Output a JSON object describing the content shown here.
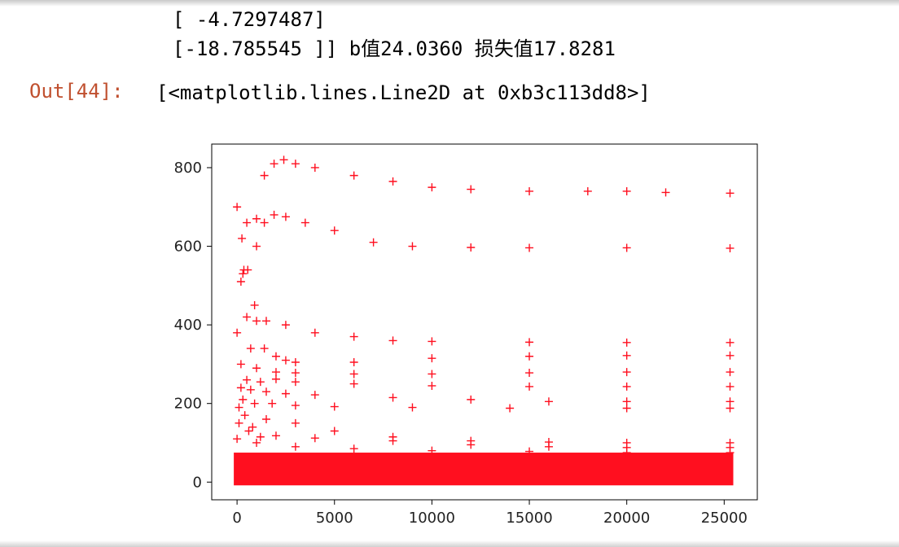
{
  "stdout": {
    "lines": [
      "[ -4.7297487]",
      "[-18.785545 ]] b值24.0360 损失值17.8281"
    ]
  },
  "output": {
    "prompt": "Out[44]:",
    "text": "[<matplotlib.lines.Line2D at 0xb3c113dd8>]"
  },
  "colors": {
    "marker": "#ff0f1f",
    "prompt": "#c0502f"
  },
  "chart_data": {
    "type": "scatter",
    "marker": "+",
    "xlim": [
      -1300,
      26700
    ],
    "ylim": [
      -45,
      860
    ],
    "x_ticks": [
      0,
      5000,
      10000,
      15000,
      20000,
      25000
    ],
    "x_tick_labels": [
      "0",
      "5000",
      "10000",
      "15000",
      "20000",
      "25000"
    ],
    "y_ticks": [
      0,
      200,
      400,
      600,
      800
    ],
    "y_tick_labels": [
      "0",
      "200",
      "400",
      "600",
      "800"
    ],
    "grid": false,
    "series": [
      {
        "points": [
          [
            0,
            700
          ],
          [
            250,
            620
          ],
          [
            1400,
            780
          ],
          [
            1900,
            810
          ],
          [
            2400,
            820
          ],
          [
            3000,
            810
          ],
          [
            4000,
            800
          ],
          [
            6000,
            780
          ],
          [
            8000,
            765
          ],
          [
            10000,
            750
          ],
          [
            12000,
            745
          ],
          [
            15000,
            740
          ],
          [
            18000,
            740
          ],
          [
            20000,
            740
          ],
          [
            22000,
            737
          ],
          [
            25300,
            735
          ]
        ]
      },
      {
        "points": [
          [
            500,
            660
          ],
          [
            1000,
            670
          ],
          [
            1400,
            660
          ],
          [
            1900,
            680
          ],
          [
            2500,
            675
          ],
          [
            3500,
            660
          ],
          [
            5000,
            640
          ],
          [
            7000,
            610
          ],
          [
            9000,
            600
          ],
          [
            12000,
            597
          ],
          [
            15000,
            596
          ],
          [
            20000,
            596
          ],
          [
            25300,
            595
          ]
        ]
      },
      {
        "points": [
          [
            200,
            510
          ],
          [
            350,
            540
          ],
          [
            550,
            540
          ],
          [
            1000,
            600
          ],
          [
            300,
            530
          ]
        ]
      },
      {
        "points": [
          [
            0,
            380
          ],
          [
            500,
            420
          ],
          [
            900,
            450
          ],
          [
            1000,
            410
          ],
          [
            1500,
            410
          ],
          [
            2500,
            400
          ],
          [
            4000,
            380
          ],
          [
            6000,
            370
          ],
          [
            8000,
            360
          ],
          [
            10000,
            358
          ],
          [
            15000,
            356
          ],
          [
            20000,
            355
          ],
          [
            25300,
            355
          ]
        ]
      },
      {
        "points": [
          [
            700,
            340
          ],
          [
            1400,
            340
          ],
          [
            2000,
            320
          ],
          [
            2500,
            310
          ],
          [
            3000,
            305
          ],
          [
            6000,
            305
          ],
          [
            10000,
            315
          ],
          [
            15000,
            320
          ],
          [
            20000,
            322
          ],
          [
            25300,
            322
          ]
        ]
      },
      {
        "points": [
          [
            200,
            300
          ],
          [
            1000,
            290
          ],
          [
            2000,
            280
          ],
          [
            3000,
            278
          ],
          [
            6000,
            275
          ],
          [
            10000,
            275
          ],
          [
            15000,
            278
          ],
          [
            20000,
            280
          ],
          [
            25300,
            280
          ]
        ]
      },
      {
        "points": [
          [
            500,
            260
          ],
          [
            1200,
            255
          ],
          [
            2000,
            262
          ],
          [
            3000,
            255
          ],
          [
            6000,
            250
          ],
          [
            10000,
            245
          ],
          [
            15000,
            243
          ],
          [
            20000,
            243
          ],
          [
            25300,
            243
          ]
        ]
      },
      {
        "points": [
          [
            200,
            240
          ],
          [
            700,
            235
          ],
          [
            1500,
            230
          ],
          [
            2500,
            225
          ],
          [
            4000,
            222
          ],
          [
            8000,
            215
          ],
          [
            12000,
            210
          ],
          [
            16000,
            205
          ],
          [
            20000,
            205
          ],
          [
            25300,
            205
          ]
        ]
      },
      {
        "points": [
          [
            300,
            210
          ],
          [
            900,
            200
          ],
          [
            1800,
            200
          ],
          [
            3000,
            195
          ],
          [
            5000,
            192
          ],
          [
            9000,
            190
          ],
          [
            14000,
            188
          ],
          [
            20000,
            188
          ],
          [
            25300,
            188
          ]
        ]
      },
      {
        "points": [
          [
            100,
            190
          ],
          [
            400,
            170
          ],
          [
            800,
            140
          ],
          [
            1500,
            160
          ],
          [
            3000,
            150
          ],
          [
            5000,
            130
          ],
          [
            8000,
            115
          ],
          [
            12000,
            105
          ],
          [
            16000,
            102
          ],
          [
            20000,
            100
          ],
          [
            25300,
            100
          ]
        ]
      },
      {
        "points": [
          [
            100,
            150
          ],
          [
            600,
            130
          ],
          [
            1200,
            115
          ],
          [
            2000,
            118
          ],
          [
            4000,
            112
          ],
          [
            8000,
            105
          ],
          [
            12000,
            95
          ],
          [
            16000,
            90
          ],
          [
            20000,
            88
          ],
          [
            25300,
            88
          ]
        ]
      },
      {
        "points": [
          [
            0,
            110
          ],
          [
            1000,
            100
          ],
          [
            3000,
            90
          ],
          [
            6000,
            85
          ],
          [
            10000,
            80
          ],
          [
            15000,
            78
          ],
          [
            20000,
            75
          ],
          [
            25300,
            75
          ]
        ]
      }
    ],
    "dense_band": {
      "x_range": [
        0,
        25300
      ],
      "y_range": [
        0,
        75
      ]
    }
  }
}
